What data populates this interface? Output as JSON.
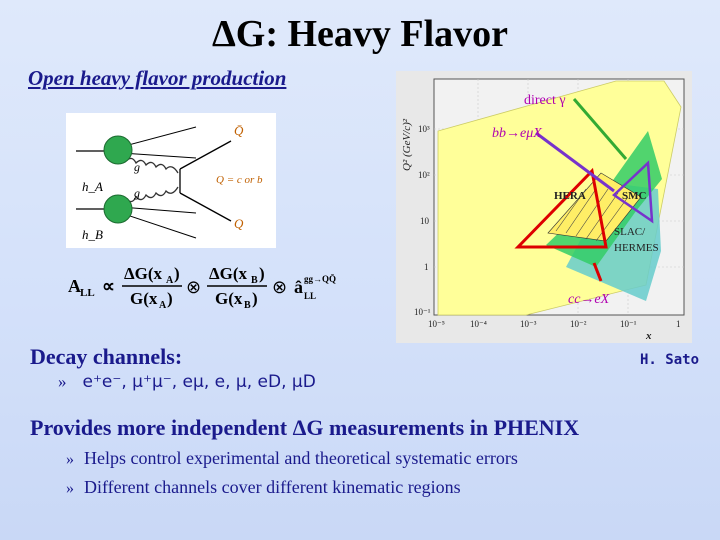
{
  "slide": {
    "title": "ΔG: Heavy Flavor",
    "subtitle": "Open heavy flavor production",
    "author": "H. Sato",
    "decay": {
      "heading": "Decay channels:",
      "bullet": "»",
      "channels": "e⁺e⁻, μ⁺μ⁻, eμ, e, μ, eD, μD"
    },
    "provides": {
      "heading": "Provides more independent ΔG measurements in PHENIX",
      "items": [
        {
          "bullet": "»",
          "text": "Helps control experimental and theoretical systematic errors"
        },
        {
          "bullet": "»",
          "text": "Different channels cover different kinematic regions"
        }
      ]
    }
  },
  "feynman": {
    "hA": "h_A",
    "hB": "h_B",
    "g1": "g",
    "g2": "g",
    "Qbar": "Q̄",
    "Q": "Q",
    "eq": "Q = c or b"
  },
  "formula": {
    "lhs": "A",
    "lhs_sub": "LL",
    "prop": "∝",
    "num1": "ΔG(x",
    "sub_a": "A",
    "den1": "G(x",
    "num2": "ΔG(x",
    "sub_b": "B",
    "den2": "G(x",
    "close": ")",
    "otimes": "⊗",
    "ahat": "â",
    "ahat_sup": "gg→QQ̄",
    "ahat_sub": "LL"
  },
  "plot": {
    "ylabel": "Q² (GeV/c)²",
    "xlabel": "x",
    "yticks": [
      "10³",
      "10²",
      "10",
      "1",
      "10⁻¹"
    ],
    "xticks": [
      "10⁻⁵",
      "10⁻⁴",
      "10⁻³",
      "10⁻²",
      "10⁻¹",
      "1"
    ],
    "label_direct": "direct γ",
    "label_bb": "bb→eμX",
    "label_hera": "HERA",
    "label_smc": "SMC",
    "label_slac": "SLAC/",
    "label_hermes": "HERMES",
    "label_cc": "cc→eX"
  },
  "colors": {
    "text_blue": "#1a1a8c",
    "yellow_region": "#ffff99",
    "green_region": "#33cc66",
    "teal_region": "#66cccc",
    "red_outline": "#dd0000",
    "purple_arrow": "#7733cc"
  }
}
